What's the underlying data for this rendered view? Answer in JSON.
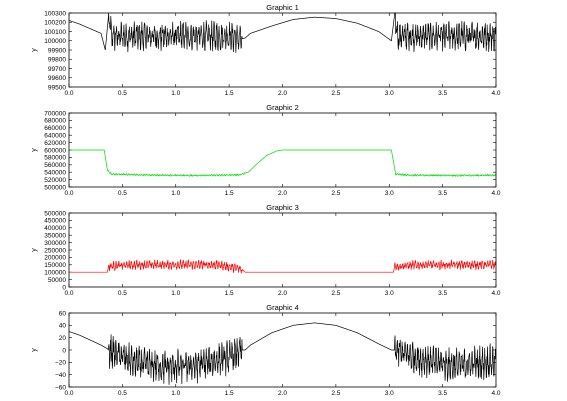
{
  "chart_data": [
    {
      "type": "line",
      "title": "Graphic 1",
      "ylabel": "y",
      "xlim": [
        0,
        4
      ],
      "ylim": [
        99500,
        100300
      ],
      "xticks": [
        "0.0",
        "0.5",
        "1.0",
        "1.5",
        "2.0",
        "2.5",
        "3.0",
        "3.5",
        "4.0"
      ],
      "yticks": [
        "100300",
        "100200",
        "100100",
        "100000",
        "99900",
        "99800",
        "99700",
        "99600",
        "99500"
      ],
      "series": [
        {
          "color": "#000000",
          "x": [
            0.0,
            0.1,
            0.2,
            0.3,
            0.34,
            0.37,
            0.4,
            0.6,
            0.9,
            1.2,
            1.5,
            1.62,
            1.65,
            1.7,
            1.9,
            2.1,
            2.3,
            2.5,
            2.7,
            2.9,
            3.02,
            3.05,
            3.08,
            3.3,
            3.6,
            3.9,
            4.0
          ],
          "y": [
            100220,
            100180,
            100130,
            100080,
            99900,
            100270,
            100050,
            100050,
            100050,
            100050,
            100050,
            100020,
            100030,
            100080,
            100160,
            100230,
            100255,
            100240,
            100190,
            100100,
            100000,
            100280,
            100050,
            100050,
            100050,
            100050,
            100050
          ],
          "noise": [
            [
              0.37,
              1.62,
              180
            ],
            [
              3.05,
              4.0,
              180
            ]
          ]
        }
      ]
    },
    {
      "type": "line",
      "title": "Graphic 2",
      "ylabel": "y",
      "xlim": [
        0,
        4
      ],
      "ylim": [
        500000,
        700000
      ],
      "xticks": [
        "0.0",
        "0.5",
        "1.0",
        "1.5",
        "2.0",
        "2.5",
        "3.0",
        "3.5",
        "4.0"
      ],
      "yticks": [
        "700000",
        "680000",
        "660000",
        "640000",
        "620000",
        "600000",
        "580000",
        "560000",
        "540000",
        "520000",
        "500000"
      ],
      "series": [
        {
          "color": "#00dd00",
          "x": [
            0.0,
            0.33,
            0.36,
            0.4,
            0.8,
            1.2,
            1.6,
            1.68,
            1.75,
            1.85,
            1.95,
            2.0,
            2.5,
            3.0,
            3.02,
            3.06,
            3.2,
            3.6,
            4.0
          ],
          "y": [
            600000,
            600000,
            545000,
            535000,
            532000,
            531000,
            533000,
            540000,
            560000,
            585000,
            598000,
            600000,
            600000,
            600000,
            600000,
            535000,
            532000,
            531000,
            532000
          ],
          "noise": [
            [
              0.36,
              1.65,
              2500
            ],
            [
              3.06,
              4.0,
              2500
            ]
          ]
        }
      ]
    },
    {
      "type": "line",
      "title": "Graphic 3",
      "ylabel": "y",
      "xlim": [
        0,
        4
      ],
      "ylim": [
        0,
        500000
      ],
      "xticks": [
        "0.0",
        "0.5",
        "1.0",
        "1.5",
        "2.0",
        "2.5",
        "3.0",
        "3.5",
        "4.0"
      ],
      "yticks": [
        "500000",
        "450000",
        "400000",
        "350000",
        "300000",
        "250000",
        "200000",
        "150000",
        "100000",
        "50000",
        "0"
      ],
      "series": [
        {
          "color": "#ff0000",
          "x": [
            0.0,
            0.36,
            0.37,
            0.6,
            1.0,
            1.4,
            1.62,
            1.65,
            3.04,
            3.05,
            3.3,
            3.7,
            4.0
          ],
          "y": [
            100000,
            100000,
            140000,
            150000,
            150000,
            150000,
            120000,
            100000,
            100000,
            140000,
            150000,
            150000,
            150000
          ],
          "noise": [
            [
              0.37,
              1.62,
              35000
            ],
            [
              3.05,
              4.0,
              35000
            ]
          ]
        }
      ]
    },
    {
      "type": "line",
      "title": "Graphic 4",
      "ylabel": "y",
      "xlim": [
        0,
        4
      ],
      "ylim": [
        -60,
        60
      ],
      "xticks": [
        "0.0",
        "0.5",
        "1.0",
        "1.5",
        "2.0",
        "2.5",
        "3.0",
        "3.5",
        "4.0"
      ],
      "yticks": [
        "60",
        "40",
        "20",
        "0",
        "−20",
        "−40",
        "−60"
      ],
      "series": [
        {
          "color": "#000000",
          "x": [
            0.0,
            0.1,
            0.2,
            0.3,
            0.36,
            0.37,
            0.6,
            0.9,
            1.2,
            1.5,
            1.62,
            1.65,
            1.7,
            1.9,
            2.1,
            2.3,
            2.5,
            2.7,
            2.9,
            3.02,
            3.05,
            3.3,
            3.6,
            3.9,
            4.0
          ],
          "y": [
            30,
            24,
            16,
            8,
            2,
            0,
            -20,
            -28,
            -25,
            -12,
            0,
            0,
            8,
            28,
            40,
            44,
            40,
            28,
            10,
            0,
            0,
            -15,
            -25,
            -20,
            -18
          ],
          "noise": [
            [
              0.37,
              1.62,
              30
            ],
            [
              3.05,
              4.0,
              30
            ]
          ]
        }
      ]
    }
  ]
}
